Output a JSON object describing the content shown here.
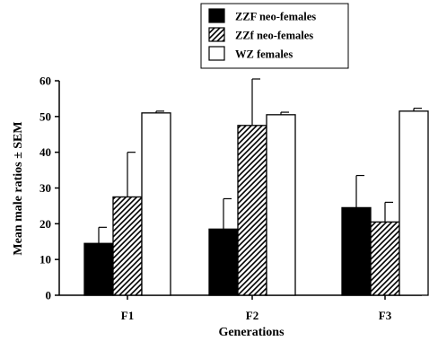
{
  "chart_data": {
    "type": "bar",
    "categories": [
      "F1",
      "F2",
      "F3"
    ],
    "series": [
      {
        "name": "ZZF neo-females",
        "values": [
          14.5,
          18.5,
          24.5
        ],
        "errors": [
          4.5,
          8.5,
          9.0
        ],
        "fill": "solid"
      },
      {
        "name": "ZZf neo-females",
        "values": [
          27.5,
          47.5,
          20.5
        ],
        "errors": [
          12.5,
          13.0,
          5.5
        ],
        "fill": "hatched"
      },
      {
        "name": "WZ females",
        "values": [
          51.0,
          50.5,
          51.5
        ],
        "errors": [
          0.5,
          0.7,
          0.8
        ],
        "fill": "open"
      }
    ],
    "xlabel": "Generations",
    "ylabel": "Mean male ratios ± SEM",
    "ylim": [
      0,
      60
    ],
    "yticks": [
      0,
      10,
      20,
      30,
      40,
      50,
      60
    ],
    "grid": false,
    "legend_position": "top-center",
    "colors": {
      "bar_stroke": "#000000",
      "solid_fill": "#000000",
      "open_fill": "#ffffff"
    }
  }
}
